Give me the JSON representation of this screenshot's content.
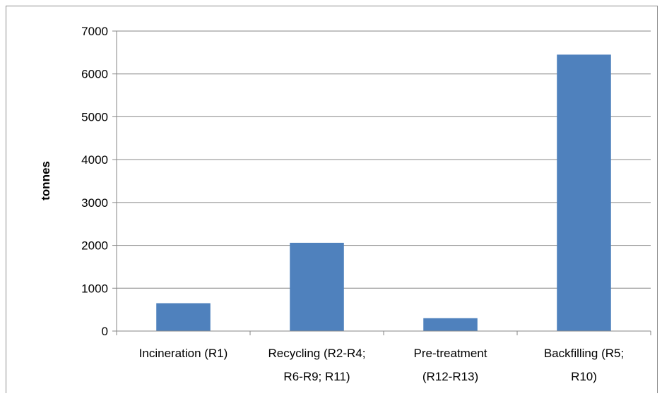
{
  "chart_data": {
    "type": "bar",
    "categories": [
      [
        "Incineration (R1)"
      ],
      [
        "Recycling (R2-R4;",
        "R6-R9; R11)"
      ],
      [
        "Pre-treatment",
        "(R12-R13)"
      ],
      [
        "Backfilling (R5;",
        "R10)"
      ]
    ],
    "values": [
      650,
      2060,
      300,
      6450
    ],
    "ylabel": "tonnes",
    "xlabel": "",
    "ylim": [
      0,
      7000
    ],
    "yticks": [
      0,
      1000,
      2000,
      3000,
      4000,
      5000,
      6000,
      7000
    ],
    "grid": true,
    "legend": "none",
    "bar_color": "#4F81BD",
    "grid_color": "#868686"
  }
}
